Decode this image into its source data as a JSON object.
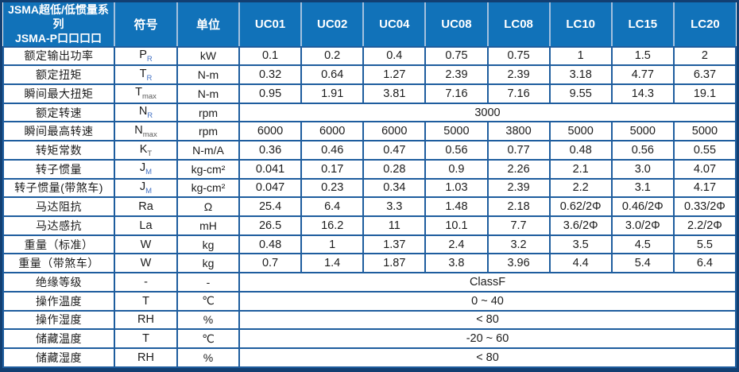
{
  "colors": {
    "header_bg": "#1172b9",
    "header_text": "#ffffff",
    "header_divider": "#a3c0de",
    "border": "#1e5d9e",
    "outer_border": "#123f72",
    "text": "#1c1c1c",
    "subscript_blue": "#4472c4",
    "subscript_dark": "#595959"
  },
  "table": {
    "header": {
      "title_line1": "JSMA超低/低惯量系列",
      "title_line2": "JSMA-P口口口口",
      "symbol_col": "符号",
      "unit_col": "单位",
      "models": [
        "UC01",
        "UC02",
        "UC04",
        "UC08",
        "LC08",
        "LC10",
        "LC15",
        "LC20"
      ]
    },
    "rows": [
      {
        "label": "额定输出功率",
        "sym": "P",
        "sub": "R",
        "sub_color": "#4472c4",
        "unit": "kW",
        "values": [
          "0.1",
          "0.2",
          "0.4",
          "0.75",
          "0.75",
          "1",
          "1.5",
          "2"
        ]
      },
      {
        "label": "额定扭矩",
        "sym": "T",
        "sub": "R",
        "sub_color": "#4472c4",
        "unit": "N-m",
        "values": [
          "0.32",
          "0.64",
          "1.27",
          "2.39",
          "2.39",
          "3.18",
          "4.77",
          "6.37"
        ]
      },
      {
        "label": "瞬间最大扭矩",
        "sym": "T",
        "sub": "max",
        "sub_color": "#595959",
        "unit": "N-m",
        "values": [
          "0.95",
          "1.91",
          "3.81",
          "7.16",
          "7.16",
          "9.55",
          "14.3",
          "19.1"
        ]
      },
      {
        "label": "额定转速",
        "sym": "N",
        "sub": "R",
        "sub_color": "#4472c4",
        "unit": "rpm",
        "merged": "3000"
      },
      {
        "label": "瞬间最高转速",
        "sym": "N",
        "sub": "max",
        "sub_color": "#595959",
        "unit": "rpm",
        "values": [
          "6000",
          "6000",
          "6000",
          "5000",
          "3800",
          "5000",
          "5000",
          "5000"
        ]
      },
      {
        "label": "转矩常数",
        "sym": "K",
        "sub": "T",
        "sub_color": "#595959",
        "unit": "N-m/A",
        "values": [
          "0.36",
          "0.46",
          "0.47",
          "0.56",
          "0.77",
          "0.48",
          "0.56",
          "0.55"
        ]
      },
      {
        "label": "转子惯量",
        "sym": "J",
        "sub": "M",
        "sub_color": "#4472c4",
        "unit": "kg-cm²",
        "values": [
          "0.041",
          "0.17",
          "0.28",
          "0.9",
          "2.26",
          "2.1",
          "3.0",
          "4.07"
        ]
      },
      {
        "label": "转子惯量(带煞车)",
        "sym": "J",
        "sub": "M",
        "sub_color": "#4472c4",
        "unit": "kg-cm²",
        "values": [
          "0.047",
          "0.23",
          "0.34",
          "1.03",
          "2.39",
          "2.2",
          "3.1",
          "4.17"
        ]
      },
      {
        "label": "马达阻抗",
        "sym": "Ra",
        "sub": "",
        "unit": "Ω",
        "values": [
          "25.4",
          "6.4",
          "3.3",
          "1.48",
          "2.18",
          "0.62/2Φ",
          "0.46/2Φ",
          "0.33/2Φ"
        ]
      },
      {
        "label": "马达感抗",
        "sym": "La",
        "sub": "",
        "unit": "mH",
        "values": [
          "26.5",
          "16.2",
          "11",
          "10.1",
          "7.7",
          "3.6/2Φ",
          "3.0/2Φ",
          "2.2/2Φ"
        ]
      },
      {
        "label": "重量（标准）",
        "sym": "W",
        "sub": "",
        "unit": "kg",
        "values": [
          "0.48",
          "1",
          "1.37",
          "2.4",
          "3.2",
          "3.5",
          "4.5",
          "5.5"
        ]
      },
      {
        "label": "重量（带煞车）",
        "sym": "W",
        "sub": "",
        "unit": "kg",
        "values": [
          "0.7",
          "1.4",
          "1.87",
          "3.8",
          "3.96",
          "4.4",
          "5.4",
          "6.4"
        ]
      },
      {
        "label": "绝缘等级",
        "sym": "-",
        "sub": "",
        "unit": "-",
        "merged": "ClassF"
      },
      {
        "label": "操作温度",
        "sym": "T",
        "sub": "",
        "unit": "℃",
        "merged": "0 ~ 40"
      },
      {
        "label": "操作湿度",
        "sym": "RH",
        "sub": "",
        "unit": "%",
        "merged": "< 80"
      },
      {
        "label": "储藏温度",
        "sym": "T",
        "sub": "",
        "unit": "℃",
        "merged": "-20 ~ 60"
      },
      {
        "label": "储藏湿度",
        "sym": "RH",
        "sub": "",
        "unit": "%",
        "merged": "< 80"
      }
    ]
  }
}
